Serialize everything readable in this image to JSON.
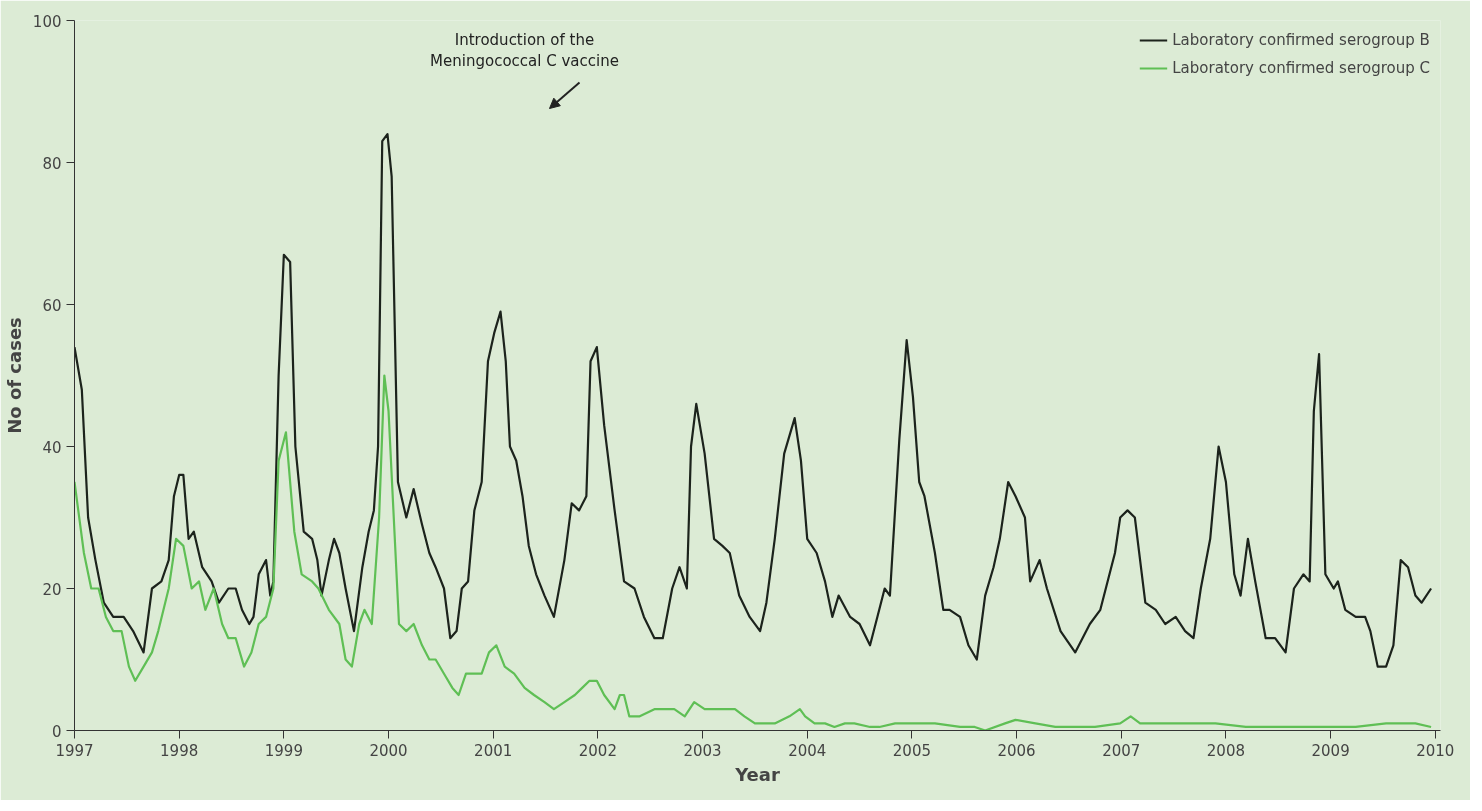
{
  "chart_data": {
    "type": "line",
    "xlabel": "Year",
    "ylabel": "No of cases",
    "xlim": [
      1997,
      2010.05
    ],
    "ylim": [
      0,
      100
    ],
    "xticks": [
      1997,
      1998,
      1999,
      2000,
      2001,
      2002,
      2003,
      2004,
      2005,
      2006,
      2007,
      2008,
      2009,
      2010
    ],
    "yticks": [
      0,
      20,
      40,
      60,
      80,
      100
    ],
    "grid": false,
    "legend": "top right",
    "marker": "none",
    "line_style": "solid",
    "annotations": [
      "Introduction of the\nMeningococcal C vaccine"
    ],
    "series": [
      {
        "name": "Laboratory confirmed serogroup B",
        "color": "#1c231c",
        "x": [
          1997.0,
          1997.07,
          1997.13,
          1997.2,
          1997.28,
          1997.37,
          1997.47,
          1997.56,
          1997.66,
          1997.74,
          1997.83,
          1997.9,
          1997.95,
          1998.0,
          1998.04,
          1998.09,
          1998.14,
          1998.22,
          1998.31,
          1998.38,
          1998.47,
          1998.54,
          1998.6,
          1998.67,
          1998.71,
          1998.76,
          1998.83,
          1998.87,
          1998.9,
          1998.95,
          1999.0,
          1999.06,
          1999.11,
          1999.19,
          1999.27,
          1999.32,
          1999.36,
          1999.43,
          1999.48,
          1999.53,
          1999.59,
          1999.67,
          1999.75,
          1999.81,
          1999.86,
          1999.9,
          1999.94,
          1999.99,
          2000.03,
          2000.09,
          2000.17,
          2000.24,
          2000.32,
          2000.39,
          2000.45,
          2000.53,
          2000.59,
          2000.65,
          2000.7,
          2000.76,
          2000.82,
          2000.89,
          2000.95,
          2001.01,
          2001.07,
          2001.12,
          2001.16,
          2001.22,
          2001.28,
          2001.34,
          2001.41,
          2001.49,
          2001.58,
          2001.68,
          2001.75,
          2001.82,
          2001.89,
          2001.93,
          2001.99,
          2002.06,
          2002.16,
          2002.25,
          2002.35,
          2002.44,
          2002.54,
          2002.62,
          2002.71,
          2002.78,
          2002.85,
          2002.89,
          2002.94,
          2003.02,
          2003.11,
          2003.19,
          2003.26,
          2003.35,
          2003.45,
          2003.55,
          2003.61,
          2003.69,
          2003.78,
          2003.88,
          2003.94,
          2004.0,
          2004.09,
          2004.17,
          2004.24,
          2004.3,
          2004.41,
          2004.5,
          2004.6,
          2004.67,
          2004.74,
          2004.79,
          2004.88,
          2004.95,
          2005.01,
          2005.07,
          2005.12,
          2005.22,
          2005.3,
          2005.36,
          2005.46,
          2005.54,
          2005.62,
          2005.7,
          2005.78,
          2005.84,
          2005.92,
          2005.99,
          2006.08,
          2006.13,
          2006.22,
          2006.29,
          2006.42,
          2006.56,
          2006.7,
          2006.8,
          2006.94,
          2006.99,
          2007.06,
          2007.13,
          2007.23,
          2007.33,
          2007.42,
          2007.52,
          2007.61,
          2007.69,
          2007.76,
          2007.85,
          2007.93,
          2008.0,
          2008.08,
          2008.14,
          2008.21,
          2008.28,
          2008.38,
          2008.47,
          2008.57,
          2008.65,
          2008.74,
          2008.8,
          2008.84,
          2008.89,
          2008.95,
          2009.03,
          2009.07,
          2009.14,
          2009.24,
          2009.33,
          2009.38,
          2009.45,
          2009.53,
          2009.6,
          2009.67,
          2009.74,
          2009.81,
          2009.87,
          2009.96
        ],
        "values": [
          54,
          48,
          30,
          24,
          18,
          16,
          16,
          14,
          11,
          20,
          21,
          24,
          33,
          36,
          36,
          27,
          28,
          23,
          21,
          18,
          20,
          20,
          17,
          15,
          16,
          22,
          24,
          19,
          21,
          50,
          67,
          66,
          40,
          28,
          27,
          24,
          19,
          24,
          27,
          25,
          20,
          14,
          23,
          28,
          31,
          40,
          83,
          84,
          78,
          35,
          30,
          34,
          29,
          25,
          23,
          20,
          13,
          14,
          20,
          21,
          31,
          35,
          52,
          56,
          59,
          52,
          40,
          38,
          33,
          26,
          22,
          19,
          16,
          24,
          32,
          31,
          33,
          52,
          54,
          43,
          31,
          21,
          20,
          16,
          13,
          13,
          20,
          23,
          20,
          40,
          46,
          39,
          27,
          26,
          25,
          19,
          16,
          14,
          18,
          27,
          39,
          44,
          38,
          27,
          25,
          21,
          16,
          19,
          16,
          15,
          12,
          16,
          20,
          19,
          41,
          55,
          47,
          35,
          33,
          25,
          17,
          17,
          16,
          12,
          10,
          19,
          23,
          27,
          35,
          33,
          30,
          21,
          24,
          20,
          14,
          11,
          15,
          17,
          25,
          30,
          31,
          30,
          18,
          17,
          15,
          16,
          14,
          13,
          20,
          27,
          40,
          35,
          22,
          19,
          27,
          21,
          13,
          13,
          11,
          20,
          22,
          21,
          45,
          53,
          22,
          20,
          21,
          17,
          16,
          16,
          14,
          9,
          9,
          12,
          24,
          23,
          19,
          18,
          20
        ]
      },
      {
        "name": "Laboratory confirmed serogroup C",
        "color": "#5fbf55",
        "x": [
          1997.0,
          1997.09,
          1997.16,
          1997.23,
          1997.3,
          1997.37,
          1997.45,
          1997.52,
          1997.58,
          1997.66,
          1997.74,
          1997.8,
          1997.9,
          1997.97,
          1998.04,
          1998.12,
          1998.19,
          1998.25,
          1998.33,
          1998.41,
          1998.47,
          1998.54,
          1998.62,
          1998.69,
          1998.76,
          1998.83,
          1998.9,
          1998.95,
          1999.02,
          1999.1,
          1999.17,
          1999.27,
          1999.33,
          1999.43,
          1999.53,
          1999.59,
          1999.65,
          1999.72,
          1999.77,
          1999.84,
          1999.91,
          1999.96,
          2000.0,
          2000.05,
          2000.1,
          2000.17,
          2000.24,
          2000.32,
          2000.39,
          2000.45,
          2000.53,
          2000.61,
          2000.67,
          2000.74,
          2000.82,
          2000.89,
          2000.96,
          2001.03,
          2001.11,
          2001.2,
          2001.3,
          2001.39,
          2001.49,
          2001.58,
          2001.68,
          2001.78,
          2001.85,
          2001.92,
          2001.99,
          2002.06,
          2002.16,
          2002.21,
          2002.25,
          2002.3,
          2002.4,
          2002.54,
          2002.64,
          2002.73,
          2002.83,
          2002.92,
          2003.02,
          2003.11,
          2003.21,
          2003.31,
          2003.4,
          2003.5,
          2003.69,
          2003.83,
          2003.93,
          2003.98,
          2004.07,
          2004.17,
          2004.26,
          2004.36,
          2004.45,
          2004.6,
          2004.69,
          2004.84,
          2005.03,
          2005.22,
          2005.46,
          2005.6,
          2005.7,
          2005.89,
          2005.99,
          2006.18,
          2006.37,
          2006.56,
          2006.75,
          2006.99,
          2007.09,
          2007.18,
          2007.52,
          2007.9,
          2008.19,
          2008.47,
          2008.86,
          2009.24,
          2009.53,
          2009.81,
          2009.96
        ],
        "values": [
          35,
          25,
          20,
          20,
          16,
          14,
          14,
          9,
          7,
          9,
          11,
          14,
          20,
          27,
          26,
          20,
          21,
          17,
          20,
          15,
          13,
          13,
          9,
          11,
          15,
          16,
          20,
          38,
          42,
          28,
          22,
          21,
          20,
          17,
          15,
          10,
          9,
          15,
          17,
          15,
          30,
          50,
          45,
          30,
          15,
          14,
          15,
          12,
          10,
          10,
          8,
          6,
          5,
          8,
          8,
          8,
          11,
          12,
          9,
          8,
          6,
          5,
          4,
          3,
          4,
          5,
          6,
          7,
          7,
          5,
          3,
          5,
          5,
          2,
          2,
          3,
          3,
          3,
          2,
          4,
          3,
          3,
          3,
          3,
          2,
          1,
          1,
          2,
          3,
          2,
          1,
          1,
          0.5,
          1,
          1,
          0.5,
          0.5,
          1,
          1,
          1,
          0.5,
          0.5,
          0,
          1,
          1.5,
          1,
          0.5,
          0.5,
          0.5,
          1,
          2,
          1,
          1,
          1,
          0.5,
          0.5,
          0.5,
          0.5,
          1,
          1,
          0.5
        ]
      }
    ]
  }
}
